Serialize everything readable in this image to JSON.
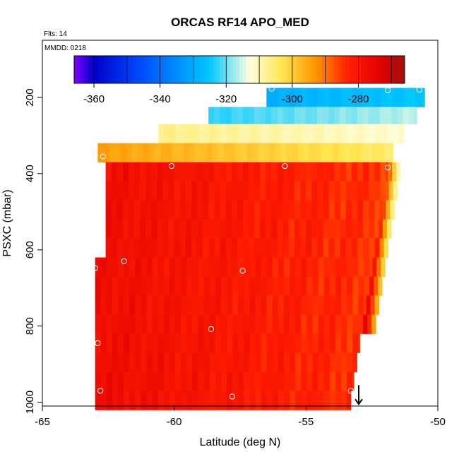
{
  "chart_data": {
    "type": "heatmap",
    "title": "ORCAS RF14 APO_MED",
    "flights_label": "Flts: 14",
    "date_label": "MMDD: 0218",
    "xlabel": "Latitude (deg N)",
    "ylabel": "PSXC (mbar)",
    "xlim": [
      -65,
      -50
    ],
    "ylim": [
      1010,
      50
    ],
    "x_ticks": [
      -65,
      -60,
      -55,
      -50
    ],
    "y_ticks": [
      200,
      400,
      600,
      800,
      1000
    ],
    "colorbar": {
      "range": [
        -366,
        -266
      ],
      "ticks": [
        -360,
        -340,
        -320,
        -300,
        -280
      ],
      "colors": [
        "#7f00ff",
        "#0000c8",
        "#0050ff",
        "#00c8ff",
        "#ffffe0",
        "#ffe650",
        "#ff9600",
        "#ff1e00",
        "#e00000",
        "#a01010"
      ],
      "color_stops": [
        -366,
        -360,
        -345,
        -325,
        -313,
        -303,
        -293,
        -283,
        -273,
        -266
      ]
    },
    "layers": [
      {
        "p_top": 175,
        "p_bot": 225,
        "x_start": -56.5,
        "x_end": -50.5,
        "left_value": -329,
        "right_value": -325
      },
      {
        "p_top": 225,
        "p_bot": 270,
        "x_start": -58.7,
        "x_end": -50.8,
        "left_value": -323,
        "right_value": -316
      },
      {
        "p_top": 270,
        "p_bot": 320,
        "x_start": -60.6,
        "x_end": -51.3,
        "left_value": -307,
        "right_value": -312
      },
      {
        "p_top": 320,
        "p_bot": 370,
        "x_start": -62.9,
        "x_end": -51.7,
        "left_value": -294,
        "right_value": -305
      }
    ],
    "lower_block": {
      "p_top": 370,
      "p_bot": 1000,
      "step_mbar": 50,
      "min_x": -63.0,
      "right_edge_top": -51.9,
      "right_edge_bottom": -53.3,
      "value_left": -278,
      "value_right": -285,
      "value_bottom": -276
    },
    "arrow": {
      "lat": -53.0,
      "p_from": 955,
      "p_to": 1005
    },
    "markers": [
      {
        "lat": -56.3,
        "p": 177
      },
      {
        "lat": -51.9,
        "p": 181
      },
      {
        "lat": -50.7,
        "p": 180
      },
      {
        "lat": -62.7,
        "p": 355
      },
      {
        "lat": -60.1,
        "p": 380
      },
      {
        "lat": -55.8,
        "p": 380
      },
      {
        "lat": -51.9,
        "p": 384
      },
      {
        "lat": -61.9,
        "p": 630
      },
      {
        "lat": -63.0,
        "p": 648
      },
      {
        "lat": -57.4,
        "p": 655
      },
      {
        "lat": -58.6,
        "p": 808
      },
      {
        "lat": -62.9,
        "p": 845
      },
      {
        "lat": -62.8,
        "p": 970
      },
      {
        "lat": -57.8,
        "p": 985
      },
      {
        "lat": -53.3,
        "p": 970
      }
    ]
  }
}
